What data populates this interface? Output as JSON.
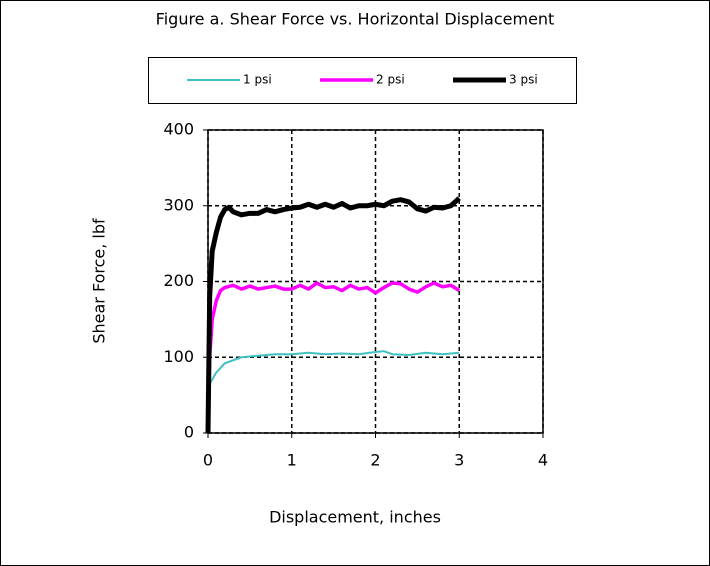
{
  "chart_data": {
    "type": "line",
    "title": "Figure a. Shear Force vs. Horizontal Displacement",
    "x_label": "Displacement, inches",
    "y_label": "Shear Force, lbf",
    "xlim": [
      0,
      4
    ],
    "xticks": [
      0,
      1,
      2,
      3,
      4
    ],
    "ylim": [
      0,
      400
    ],
    "yticks": [
      0,
      100,
      200,
      300,
      400
    ],
    "grid": true,
    "legend": "top",
    "series": [
      {
        "name": "1 psi",
        "color": "#40c0c0",
        "width": 2,
        "x": [
          0,
          0.02,
          0.1,
          0.2,
          0.4,
          0.6,
          0.8,
          1.0,
          1.2,
          1.4,
          1.6,
          1.8,
          2.0,
          2.1,
          2.2,
          2.4,
          2.6,
          2.8,
          3.0
        ],
        "values": [
          0,
          65,
          80,
          92,
          100,
          102,
          104,
          104,
          106,
          104,
          105,
          104,
          107,
          108,
          104,
          103,
          106,
          104,
          106
        ]
      },
      {
        "name": "2 psi",
        "color": "#ff00ff",
        "width": 3.5,
        "x": [
          0,
          0.02,
          0.05,
          0.1,
          0.15,
          0.2,
          0.3,
          0.4,
          0.5,
          0.6,
          0.7,
          0.8,
          0.9,
          1.0,
          1.1,
          1.2,
          1.3,
          1.4,
          1.5,
          1.6,
          1.7,
          1.8,
          1.9,
          2.0,
          2.1,
          2.2,
          2.3,
          2.4,
          2.5,
          2.6,
          2.7,
          2.8,
          2.9,
          3.0
        ],
        "values": [
          0,
          100,
          150,
          175,
          188,
          192,
          195,
          190,
          194,
          190,
          192,
          194,
          190,
          190,
          195,
          190,
          198,
          192,
          193,
          188,
          195,
          190,
          192,
          185,
          192,
          198,
          197,
          190,
          186,
          193,
          198,
          193,
          195,
          188
        ]
      },
      {
        "name": "3 psi",
        "color": "#000000",
        "width": 5,
        "x": [
          0,
          0.02,
          0.05,
          0.1,
          0.15,
          0.2,
          0.25,
          0.3,
          0.4,
          0.5,
          0.6,
          0.7,
          0.8,
          0.9,
          1.0,
          1.1,
          1.2,
          1.3,
          1.4,
          1.5,
          1.6,
          1.7,
          1.8,
          1.9,
          2.0,
          2.1,
          2.2,
          2.3,
          2.4,
          2.5,
          2.6,
          2.7,
          2.8,
          2.9,
          3.0
        ],
        "values": [
          0,
          180,
          240,
          265,
          285,
          295,
          298,
          292,
          288,
          290,
          290,
          295,
          292,
          295,
          297,
          298,
          302,
          298,
          302,
          298,
          303,
          297,
          300,
          300,
          302,
          300,
          306,
          308,
          305,
          296,
          293,
          298,
          297,
          300,
          310
        ]
      }
    ]
  }
}
